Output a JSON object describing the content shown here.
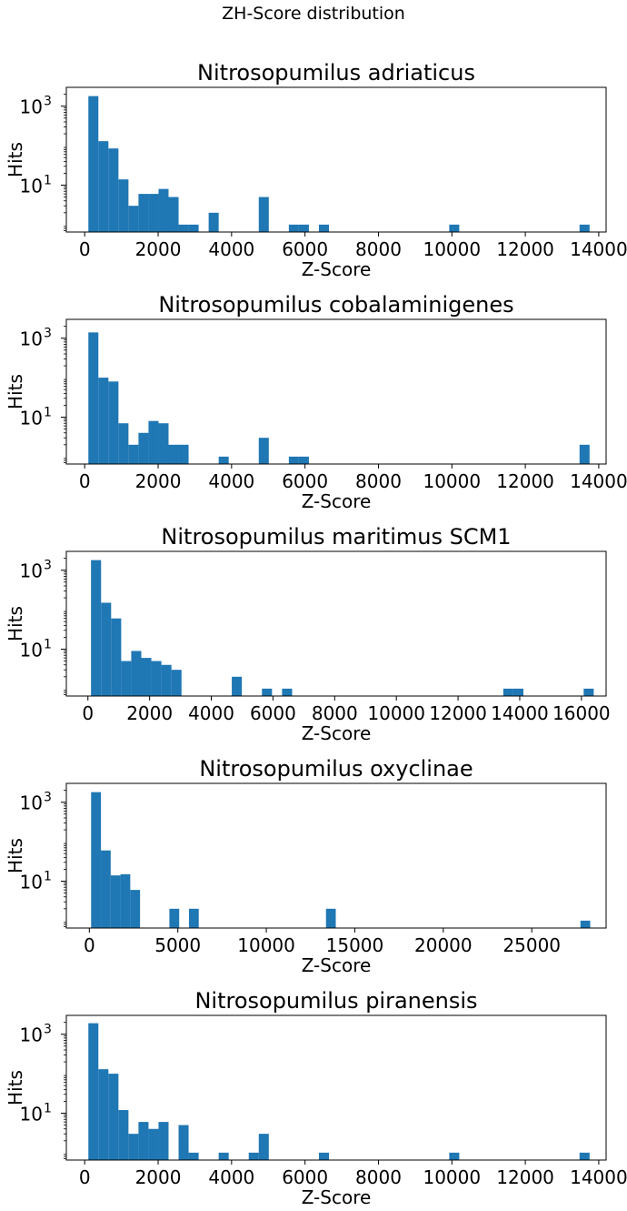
{
  "figure": {
    "title": "ZH-Score distribution"
  },
  "chart_data": [
    {
      "type": "bar",
      "title": "Nitrosopumilus adriaticus",
      "xlabel": "Z-Score",
      "ylabel": "Hits",
      "yscale": "log",
      "ylim": [
        0.65,
        3000
      ],
      "xlim": [
        -500,
        14200
      ],
      "xticks": [
        0,
        2000,
        4000,
        6000,
        8000,
        10000,
        12000,
        14000
      ],
      "yticks": [
        {
          "value": 10,
          "exp": "1"
        },
        {
          "value": 1000,
          "exp": "3"
        }
      ],
      "bin_width": 273,
      "bin_starts": [
        100,
        373,
        646,
        919,
        1192,
        1465,
        1738,
        2011,
        2284,
        2557,
        2830,
        3376,
        4741,
        5560,
        5833,
        6379,
        9928,
        13477
      ],
      "values": [
        1800,
        130,
        85,
        14,
        3,
        6,
        6,
        8,
        5,
        1,
        1,
        2,
        5,
        1,
        1,
        1,
        1,
        1
      ],
      "color": "#1f77b4"
    },
    {
      "type": "bar",
      "title": "Nitrosopumilus cobalaminigenes",
      "xlabel": "Z-Score",
      "ylabel": "Hits",
      "yscale": "log",
      "ylim": [
        0.65,
        3000
      ],
      "xlim": [
        -500,
        14200
      ],
      "xticks": [
        0,
        2000,
        4000,
        6000,
        8000,
        10000,
        12000,
        14000
      ],
      "yticks": [
        {
          "value": 10,
          "exp": "1"
        },
        {
          "value": 1000,
          "exp": "3"
        }
      ],
      "bin_width": 273,
      "bin_starts": [
        100,
        373,
        646,
        919,
        1192,
        1465,
        1738,
        2011,
        2284,
        2557,
        3649,
        4741,
        5560,
        5833,
        13477
      ],
      "values": [
        1400,
        100,
        80,
        7,
        2,
        4,
        8,
        7,
        2,
        2,
        1,
        3,
        1,
        1,
        2
      ],
      "color": "#1f77b4"
    },
    {
      "type": "bar",
      "title": "Nitrosopumilus maritimus SCM1",
      "xlabel": "Z-Score",
      "ylabel": "Hits",
      "yscale": "log",
      "ylim": [
        0.65,
        3000
      ],
      "xlim": [
        -700,
        16800
      ],
      "xticks": [
        0,
        2000,
        4000,
        6000,
        8000,
        10000,
        12000,
        14000,
        16000
      ],
      "yticks": [
        {
          "value": 10,
          "exp": "1"
        },
        {
          "value": 1000,
          "exp": "3"
        }
      ],
      "bin_width": 326,
      "bin_starts": [
        100,
        426,
        752,
        1078,
        1404,
        1730,
        2056,
        2382,
        2708,
        4664,
        5642,
        6294,
        13466,
        13792,
        16072
      ],
      "values": [
        1800,
        150,
        60,
        5,
        9,
        6,
        5,
        4,
        3,
        2,
        1,
        1,
        1,
        1,
        1
      ],
      "color": "#1f77b4"
    },
    {
      "type": "bar",
      "title": "Nitrosopumilus oxyclinae",
      "xlabel": "Z-Score",
      "ylabel": "Hits",
      "yscale": "log",
      "ylim": [
        0.65,
        3000
      ],
      "xlim": [
        -1300,
        29200
      ],
      "xticks": [
        0,
        5000,
        10000,
        15000,
        20000,
        25000
      ],
      "yticks": [
        {
          "value": 10,
          "exp": "1"
        },
        {
          "value": 1000,
          "exp": "3"
        }
      ],
      "bin_width": 553,
      "bin_starts": [
        100,
        653,
        1206,
        1759,
        2312,
        4524,
        5630,
        13372,
        27750
      ],
      "values": [
        1800,
        60,
        14,
        15,
        6,
        2,
        2,
        2,
        1
      ],
      "color": "#1f77b4"
    },
    {
      "type": "bar",
      "title": "Nitrosopumilus piranensis",
      "xlabel": "Z-Score",
      "ylabel": "Hits",
      "yscale": "log",
      "ylim": [
        0.65,
        3000
      ],
      "xlim": [
        -500,
        14200
      ],
      "xticks": [
        0,
        2000,
        4000,
        6000,
        8000,
        10000,
        12000,
        14000
      ],
      "yticks": [
        {
          "value": 10,
          "exp": "1"
        },
        {
          "value": 1000,
          "exp": "3"
        }
      ],
      "bin_width": 273,
      "bin_starts": [
        100,
        373,
        646,
        919,
        1192,
        1465,
        1738,
        2011,
        2557,
        2830,
        3649,
        4468,
        4741,
        6379,
        9928,
        13477
      ],
      "values": [
        1900,
        130,
        100,
        12,
        3,
        6,
        4,
        6,
        5,
        1,
        1,
        1,
        3,
        1,
        1,
        1
      ],
      "color": "#1f77b4"
    }
  ]
}
